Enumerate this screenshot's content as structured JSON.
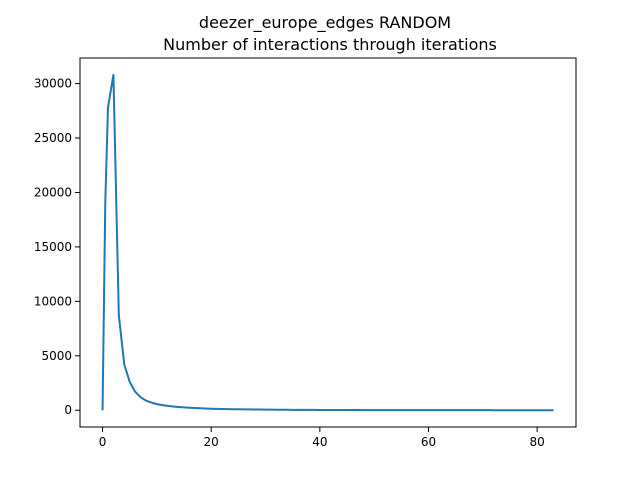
{
  "chart_data": {
    "type": "line",
    "title": "deezer_europe_edges RANDOM",
    "subtitle": "Number of interactions through iterations",
    "xlabel": "",
    "ylabel": "",
    "xlim": [
      -4.15,
      87.15
    ],
    "ylim": [
      -1540,
      32350
    ],
    "x_ticks": [
      0,
      20,
      40,
      60,
      80
    ],
    "y_ticks": [
      0,
      5000,
      10000,
      15000,
      20000,
      25000,
      30000
    ],
    "grid": false,
    "line_color": "#1f77b4",
    "series": [
      {
        "x": [
          0,
          0.5,
          1,
          2,
          3,
          4,
          5,
          6,
          7,
          8,
          9,
          10,
          11,
          12,
          13,
          14,
          15,
          16,
          17,
          18,
          19,
          20,
          21,
          22,
          23,
          24,
          25,
          26,
          27,
          28,
          29,
          30,
          31,
          32,
          33,
          34,
          35,
          36,
          37,
          38,
          39,
          40,
          41,
          42,
          43,
          44,
          45,
          46,
          47,
          48,
          49,
          50,
          51,
          52,
          53,
          54,
          55,
          56,
          57,
          58,
          59,
          60,
          61,
          62,
          63,
          64,
          65,
          66,
          67,
          68,
          69,
          70,
          71,
          72,
          73,
          74,
          75,
          76,
          77,
          78,
          79,
          80,
          81,
          82,
          83
        ],
        "values": [
          0,
          19000,
          27800,
          30800,
          8700,
          4200,
          2600,
          1700,
          1200,
          880,
          700,
          560,
          470,
          400,
          340,
          300,
          260,
          230,
          200,
          180,
          160,
          140,
          120,
          110,
          100,
          95,
          88,
          82,
          76,
          70,
          65,
          60,
          55,
          50,
          46,
          42,
          38,
          35,
          32,
          30,
          28,
          26,
          24,
          22,
          20,
          19,
          18,
          17,
          16,
          15,
          14,
          13,
          12,
          12,
          11,
          11,
          10,
          10,
          9,
          9,
          8,
          8,
          8,
          7,
          7,
          7,
          6,
          6,
          6,
          5,
          5,
          5,
          5,
          4,
          4,
          4,
          4,
          3,
          3,
          3,
          3,
          3,
          2,
          2,
          2
        ]
      }
    ]
  }
}
